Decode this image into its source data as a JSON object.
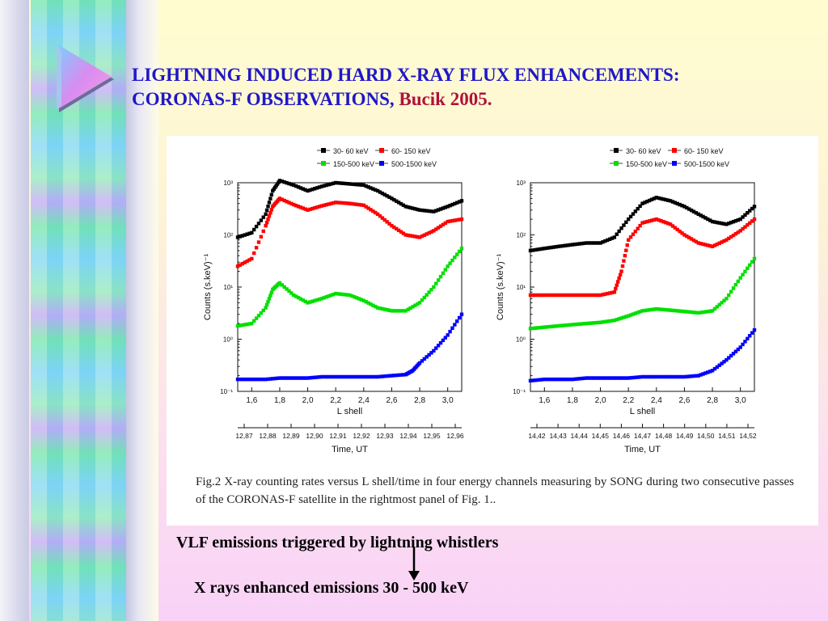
{
  "slide": {
    "title_line1": "LIGHTNING INDUCED HARD X-RAY FLUX ENHANCEMENTS:",
    "title_line2": "CORONAS-F    OBSERVATIONS, ",
    "title_author": "Bucik 2005.",
    "caption": "Fig.2 X-ray counting rates versus L shell/time in four energy channels measuring by SONG during two consecutive passes of the CORONAS-F satellite in the rightmost panel of Fig. 1..",
    "bottom_line1": "VLF emissions triggered by lightning whistlers",
    "bottom_line2": "X rays enhanced emissions 30 - 500 keV",
    "colors": {
      "title": "#1f16c9",
      "author": "#b0123a"
    }
  },
  "chart_data": [
    {
      "type": "scatter",
      "xlabel": "L shell",
      "xlabel2": "Time, UT",
      "ylabel": "Counts (s.keV)⁻¹",
      "x_ticks": [
        "1,6",
        "1,8",
        "2,0",
        "2,2",
        "2,4",
        "2,6",
        "2,8",
        "3,0"
      ],
      "time_ticks": [
        "12,87",
        "12,88",
        "12,89",
        "12,90",
        "12,91",
        "12,92",
        "12,93",
        "12,94",
        "12,95",
        "12,96"
      ],
      "y_ticks": [
        "10⁻¹",
        "10⁰",
        "10¹",
        "10²",
        "10³"
      ],
      "yscale": "log",
      "ylim": [
        0.1,
        1000
      ],
      "xlim": [
        1.5,
        3.1
      ],
      "legend": [
        "30-  60 keV",
        "60- 150 keV",
        "150-500 keV",
        "500-1500 keV"
      ],
      "series": [
        {
          "name": "30-  60 keV",
          "color": "#000000",
          "x": [
            1.5,
            1.6,
            1.7,
            1.75,
            1.8,
            1.9,
            2.0,
            2.1,
            2.2,
            2.3,
            2.4,
            2.5,
            2.6,
            2.7,
            2.8,
            2.9,
            3.0,
            3.1
          ],
          "y": [
            90,
            110,
            250,
            700,
            1100,
            900,
            700,
            850,
            1000,
            950,
            900,
            700,
            500,
            350,
            300,
            280,
            350,
            450
          ]
        },
        {
          "name": "60- 150 keV",
          "color": "#ff0000",
          "x": [
            1.5,
            1.6,
            1.7,
            1.75,
            1.8,
            1.9,
            2.0,
            2.1,
            2.2,
            2.3,
            2.4,
            2.5,
            2.6,
            2.7,
            2.8,
            2.9,
            3.0,
            3.1
          ],
          "y": [
            25,
            35,
            150,
            350,
            500,
            380,
            300,
            360,
            420,
            400,
            370,
            250,
            150,
            100,
            90,
            120,
            180,
            200
          ]
        },
        {
          "name": "150-500 keV",
          "color": "#00e000",
          "x": [
            1.5,
            1.6,
            1.7,
            1.75,
            1.8,
            1.9,
            2.0,
            2.1,
            2.2,
            2.3,
            2.4,
            2.5,
            2.6,
            2.7,
            2.8,
            2.9,
            3.0,
            3.1
          ],
          "y": [
            1.8,
            2.0,
            4.0,
            9,
            12,
            7,
            5,
            6,
            7.5,
            7,
            5.5,
            4,
            3.5,
            3.5,
            5,
            10,
            25,
            55
          ]
        },
        {
          "name": "500-1500 keV",
          "color": "#0000ff",
          "x": [
            1.5,
            1.6,
            1.7,
            1.8,
            1.9,
            2.0,
            2.1,
            2.2,
            2.3,
            2.4,
            2.5,
            2.6,
            2.7,
            2.75,
            2.8,
            2.9,
            3.0,
            3.1
          ],
          "y": [
            0.17,
            0.17,
            0.17,
            0.18,
            0.18,
            0.18,
            0.19,
            0.19,
            0.19,
            0.19,
            0.19,
            0.2,
            0.21,
            0.25,
            0.35,
            0.6,
            1.2,
            3
          ]
        }
      ]
    },
    {
      "type": "scatter",
      "xlabel": "L shell",
      "xlabel2": "Time, UT",
      "ylabel": "Counts (s.keV)⁻¹",
      "x_ticks": [
        "1,6",
        "1,8",
        "2,0",
        "2,2",
        "2,4",
        "2,6",
        "2,8",
        "3,0"
      ],
      "time_ticks": [
        "14,42",
        "14,43",
        "14,44",
        "14,45",
        "14,46",
        "14,47",
        "14,48",
        "14,49",
        "14,50",
        "14,51",
        "14,52"
      ],
      "y_ticks": [
        "10⁻¹",
        "10⁰",
        "10¹",
        "10²",
        "10³"
      ],
      "yscale": "log",
      "ylim": [
        0.1,
        1000
      ],
      "xlim": [
        1.5,
        3.1
      ],
      "legend": [
        "30-  60 keV",
        "60- 150 keV",
        "150-500 keV",
        "500-1500 keV"
      ],
      "series": [
        {
          "name": "30-  60 keV",
          "color": "#000000",
          "x": [
            1.5,
            1.6,
            1.7,
            1.8,
            1.9,
            2.0,
            2.1,
            2.2,
            2.3,
            2.4,
            2.5,
            2.6,
            2.7,
            2.8,
            2.9,
            3.0,
            3.1
          ],
          "y": [
            50,
            55,
            60,
            65,
            70,
            70,
            90,
            200,
            400,
            520,
            450,
            350,
            250,
            180,
            160,
            200,
            350
          ]
        },
        {
          "name": "60- 150 keV",
          "color": "#ff0000",
          "x": [
            1.5,
            1.6,
            1.7,
            1.8,
            1.9,
            2.0,
            2.1,
            2.15,
            2.2,
            2.3,
            2.4,
            2.5,
            2.6,
            2.7,
            2.8,
            2.9,
            3.0,
            3.1
          ],
          "y": [
            7,
            7,
            7,
            7,
            7,
            7,
            8,
            20,
            80,
            170,
            200,
            160,
            100,
            70,
            60,
            80,
            120,
            200
          ]
        },
        {
          "name": "150-500 keV",
          "color": "#00e000",
          "x": [
            1.5,
            1.6,
            1.7,
            1.8,
            1.9,
            2.0,
            2.1,
            2.2,
            2.3,
            2.4,
            2.5,
            2.6,
            2.7,
            2.8,
            2.9,
            3.0,
            3.1
          ],
          "y": [
            1.6,
            1.7,
            1.8,
            1.9,
            2.0,
            2.1,
            2.3,
            2.8,
            3.5,
            3.8,
            3.6,
            3.4,
            3.2,
            3.5,
            6,
            15,
            35
          ]
        },
        {
          "name": "500-1500 keV",
          "color": "#0000ff",
          "x": [
            1.5,
            1.6,
            1.7,
            1.8,
            1.9,
            2.0,
            2.1,
            2.2,
            2.3,
            2.4,
            2.5,
            2.6,
            2.7,
            2.8,
            2.9,
            3.0,
            3.1
          ],
          "y": [
            0.16,
            0.17,
            0.17,
            0.17,
            0.18,
            0.18,
            0.18,
            0.18,
            0.19,
            0.19,
            0.19,
            0.19,
            0.2,
            0.25,
            0.4,
            0.7,
            1.5
          ]
        }
      ]
    }
  ]
}
